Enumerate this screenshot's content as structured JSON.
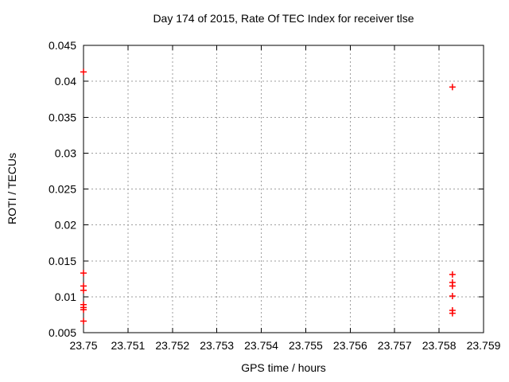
{
  "chart_data": {
    "type": "scatter",
    "title": "Day 174 of 2015, Rate Of TEC Index for receiver tlse",
    "xlabel": "GPS time / hours",
    "ylabel": "ROTI / TECUs",
    "xlim": [
      23.75,
      23.759
    ],
    "ylim": [
      0.005,
      0.045
    ],
    "xtick_values": [
      23.75,
      23.751,
      23.752,
      23.753,
      23.754,
      23.755,
      23.756,
      23.757,
      23.758,
      23.759
    ],
    "xtick_labels": [
      "23.75",
      "23.751",
      "23.752",
      "23.753",
      "23.754",
      "23.755",
      "23.756",
      "23.757",
      "23.758",
      "23.759"
    ],
    "ytick_values": [
      0.005,
      0.01,
      0.015,
      0.02,
      0.025,
      0.03,
      0.035,
      0.04,
      0.045
    ],
    "ytick_labels": [
      "0.005",
      "0.01",
      "0.015",
      "0.02",
      "0.025",
      "0.03",
      "0.035",
      "0.04",
      "0.045"
    ],
    "grid": true,
    "legend": "none",
    "marker": "plus",
    "marker_color": "#ff0000",
    "series": [
      {
        "name": "ROTI",
        "points": [
          [
            23.75,
            0.0413
          ],
          [
            23.75,
            0.0133
          ],
          [
            23.75,
            0.0115
          ],
          [
            23.75,
            0.0109
          ],
          [
            23.75,
            0.0089
          ],
          [
            23.75,
            0.0085
          ],
          [
            23.75,
            0.0082
          ],
          [
            23.75,
            0.0066
          ],
          [
            23.7583,
            0.0392
          ],
          [
            23.7583,
            0.0131
          ],
          [
            23.7583,
            0.012
          ],
          [
            23.7583,
            0.0115
          ],
          [
            23.7583,
            0.0101
          ],
          [
            23.7583,
            0.0081
          ],
          [
            23.7583,
            0.0077
          ]
        ]
      }
    ]
  },
  "colors": {
    "background": "#ffffff",
    "axis": "#000000",
    "grid": "#9e9e9e",
    "marker": "#ff0000",
    "text": "#000000"
  }
}
